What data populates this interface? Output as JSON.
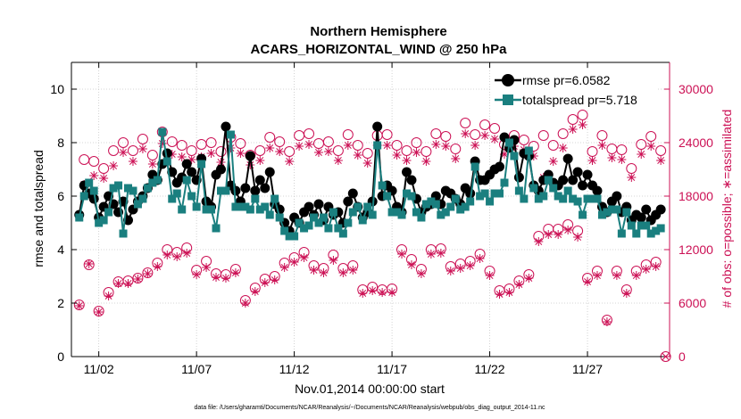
{
  "chart_data": {
    "type": "line",
    "title": "Northern Hemisphere",
    "subtitle": "ACARS_HORIZONTAL_WIND @ 250 hPa",
    "xlabel": "Nov.01,2014 00:00:00 start",
    "ylabel_left": "rmse and totalspread",
    "ylabel_right": "# of obs: o=possible; ∗=assimilated",
    "footnote": "data file: /Users/gharamti/Documents/NCAR/Reanalysis/~/Documents/NCAR/Reanalysis/webpub/obs_diag_output_2014-11.nc",
    "xlim": [
      0.6,
      31.2
    ],
    "ylim_left": [
      0,
      11
    ],
    "ylim_right": [
      0,
      33000
    ],
    "x_ticks": [
      2,
      7,
      12,
      17,
      22,
      27
    ],
    "x_tick_labels": [
      "11/02",
      "11/07",
      "11/12",
      "11/17",
      "11/22",
      "11/27"
    ],
    "y_ticks_left": [
      0,
      2,
      4,
      6,
      8,
      10
    ],
    "y_ticks_left_labels": [
      "0",
      "2",
      "4",
      "6",
      "8",
      "10"
    ],
    "y_ticks_right": [
      0,
      6000,
      12000,
      18000,
      24000,
      30000
    ],
    "y_ticks_right_labels": [
      "0",
      "6000",
      "12000",
      "18000",
      "24000",
      "30000"
    ],
    "legend_position": "top-right",
    "colors": {
      "rmse": "#000000",
      "spread": "#1a7f7f",
      "obs": "#cc1155",
      "axis_right": "#cc1155"
    },
    "x": [
      1.0,
      1.25,
      1.5,
      1.75,
      2.0,
      2.25,
      2.5,
      2.75,
      3.0,
      3.25,
      3.5,
      3.75,
      4.0,
      4.25,
      4.5,
      4.75,
      5.0,
      5.25,
      5.5,
      5.75,
      6.0,
      6.25,
      6.5,
      6.75,
      7.0,
      7.25,
      7.5,
      7.75,
      8.0,
      8.25,
      8.5,
      8.75,
      9.0,
      9.25,
      9.5,
      9.75,
      10.0,
      10.25,
      10.5,
      10.75,
      11.0,
      11.25,
      11.5,
      11.75,
      12.0,
      12.25,
      12.5,
      12.75,
      13.0,
      13.25,
      13.5,
      13.75,
      14.0,
      14.25,
      14.5,
      14.75,
      15.0,
      15.25,
      15.5,
      15.75,
      16.0,
      16.25,
      16.5,
      16.75,
      17.0,
      17.25,
      17.5,
      17.75,
      18.0,
      18.25,
      18.5,
      18.75,
      19.0,
      19.25,
      19.5,
      19.75,
      20.0,
      20.25,
      20.5,
      20.75,
      21.0,
      21.25,
      21.5,
      21.75,
      22.0,
      22.25,
      22.5,
      22.75,
      23.0,
      23.25,
      23.5,
      23.75,
      24.0,
      24.25,
      24.5,
      24.75,
      25.0,
      25.25,
      25.5,
      25.75,
      26.0,
      26.25,
      26.5,
      26.75,
      27.0,
      27.25,
      27.5,
      27.75,
      28.0,
      28.25,
      28.5,
      28.75,
      29.0,
      29.25,
      29.5,
      29.75,
      30.0,
      30.25,
      30.5,
      30.75
    ],
    "series": [
      {
        "name": "rmse pr=6.0582",
        "marker": "circle",
        "values": [
          5.3,
          6.4,
          6.1,
          5.9,
          5.2,
          5.6,
          6.0,
          5.7,
          5.4,
          5.8,
          5.1,
          5.5,
          5.8,
          6.0,
          6.3,
          6.8,
          6.6,
          7.2,
          7.6,
          6.9,
          6.5,
          6.7,
          7.2,
          6.9,
          6.6,
          7.4,
          5.8,
          5.6,
          6.8,
          7.0,
          8.6,
          6.4,
          6.2,
          5.8,
          6.3,
          7.5,
          6.2,
          6.6,
          6.3,
          6.9,
          5.7,
          5.5,
          5.0,
          4.7,
          5.2,
          5.0,
          5.4,
          5.6,
          5.3,
          5.7,
          5.1,
          5.6,
          5.3,
          5.4,
          5.0,
          5.8,
          6.1,
          5.6,
          5.2,
          5.4,
          5.8,
          8.6,
          6.0,
          6.4,
          6.2,
          5.6,
          5.4,
          6.9,
          6.6,
          5.9,
          5.4,
          5.6,
          5.7,
          6.0,
          5.7,
          6.2,
          6.1,
          5.9,
          5.7,
          6.3,
          6.1,
          7.3,
          6.6,
          6.6,
          6.8,
          7.0,
          7.1,
          8.2,
          7.8,
          8.1,
          6.7,
          7.6,
          7.5,
          6.4,
          6.2,
          6.6,
          6.8,
          6.5,
          6.4,
          6.6,
          7.4,
          6.6,
          6.9,
          6.4,
          6.8,
          6.4,
          6.2,
          5.6,
          5.4,
          5.8,
          6.0,
          5.4,
          5.6,
          5.1,
          5.3,
          5.2,
          5.5,
          5.1,
          5.3,
          5.5
        ]
      },
      {
        "name": "totalspread pr=5.718",
        "marker": "square",
        "values": [
          5.2,
          6.0,
          6.5,
          6.2,
          5.0,
          5.1,
          5.4,
          6.3,
          6.4,
          4.6,
          6.3,
          6.2,
          5.7,
          5.9,
          6.3,
          6.5,
          6.6,
          8.4,
          7.3,
          5.9,
          6.1,
          5.5,
          6.6,
          6.0,
          5.6,
          7.2,
          5.5,
          5.5,
          4.8,
          6.2,
          6.2,
          8.3,
          5.6,
          5.6,
          5.6,
          5.5,
          5.9,
          5.5,
          5.6,
          5.3,
          5.9,
          5.2,
          4.7,
          4.5,
          4.5,
          5.0,
          4.8,
          4.9,
          5.2,
          5.0,
          5.2,
          4.8,
          5.4,
          4.8,
          4.6,
          5.0,
          5.4,
          5.6,
          5.1,
          5.6,
          5.3,
          7.9,
          6.4,
          6.0,
          5.4,
          5.4,
          5.3,
          6.1,
          6.0,
          5.4,
          5.2,
          5.7,
          5.8,
          5.7,
          5.3,
          5.4,
          5.6,
          5.9,
          5.5,
          5.6,
          5.8,
          7.1,
          6.0,
          6.1,
          5.8,
          6.1,
          6.1,
          6.5,
          8.0,
          7.5,
          6.2,
          5.9,
          7.7,
          6.3,
          5.9,
          6.0,
          6.6,
          6.3,
          6.0,
          5.9,
          6.2,
          5.9,
          5.8,
          5.3,
          5.9,
          5.9,
          5.9,
          5.3,
          5.4,
          5.5,
          5.5,
          4.6,
          5.4,
          4.9,
          4.6,
          4.9,
          4.9,
          4.6,
          4.7,
          4.8
        ]
      },
      {
        "name": "possible",
        "marker": "open-circle",
        "axis": "right",
        "values": [
          5800,
          22100,
          10300,
          21900,
          5100,
          21100,
          7200,
          23100,
          8400,
          24000,
          8500,
          23100,
          8800,
          24400,
          9400,
          22600,
          10500,
          25200,
          12000,
          24100,
          11700,
          23700,
          12200,
          23100,
          9700,
          23800,
          10700,
          24000,
          9300,
          23000,
          9200,
          24600,
          9800,
          23900,
          6300,
          22600,
          7700,
          23100,
          8700,
          24600,
          9000,
          24100,
          10500,
          23000,
          11100,
          24800,
          11700,
          25000,
          10200,
          23900,
          9900,
          24100,
          11400,
          23100,
          9900,
          24900,
          10200,
          23700,
          7500,
          22800,
          7800,
          24800,
          7500,
          24900,
          7600,
          23700,
          12000,
          23100,
          10900,
          24000,
          9800,
          23000,
          12000,
          25000,
          12100,
          24700,
          10100,
          23300,
          10400,
          26200,
          10700,
          24900,
          11500,
          26000,
          9600,
          25600,
          7400,
          23800,
          7600,
          24800,
          8500,
          24300,
          9200,
          23600,
          13500,
          24800,
          14300,
          23700,
          14300,
          25000,
          14800,
          26600,
          14100,
          27100,
          8800,
          23000,
          9600,
          24800,
          4100,
          23300,
          9600,
          23200,
          7500,
          21100,
          9600,
          23800,
          10300,
          24700,
          10600,
          23100
        ]
      },
      {
        "name": "assimilated",
        "marker": "asterisk",
        "axis": "right",
        "values": [
          5700,
          19300,
          10400,
          20300,
          5000,
          20000,
          6800,
          21400,
          8200,
          22900,
          8200,
          21900,
          8700,
          23300,
          9300,
          21600,
          10100,
          23900,
          11400,
          22700,
          11200,
          22400,
          11600,
          22100,
          9200,
          22400,
          10000,
          22800,
          8900,
          21800,
          8800,
          23400,
          9400,
          22800,
          6000,
          21500,
          7300,
          22000,
          8300,
          23400,
          8600,
          23000,
          10000,
          21900,
          10600,
          23600,
          11100,
          23800,
          9700,
          22900,
          9400,
          23000,
          10800,
          22000,
          9400,
          23700,
          9700,
          22600,
          7100,
          21700,
          7400,
          23700,
          7200,
          23700,
          7200,
          22600,
          11500,
          22000,
          10300,
          22900,
          9300,
          21900,
          11500,
          23800,
          11600,
          23600,
          9600,
          22200,
          9900,
          25000,
          10200,
          23700,
          11000,
          24800,
          9100,
          24400,
          7000,
          22700,
          7200,
          23600,
          8100,
          23200,
          8800,
          22500,
          12900,
          20100,
          13700,
          21900,
          13700,
          23400,
          14200,
          25500,
          13400,
          26000,
          8400,
          22000,
          9100,
          23700,
          3900,
          22300,
          9100,
          22100,
          7100,
          20100,
          9100,
          22700,
          9800,
          23600,
          10100,
          22000
        ]
      }
    ],
    "end_marker": {
      "x": 31.0,
      "value": 0
    }
  }
}
